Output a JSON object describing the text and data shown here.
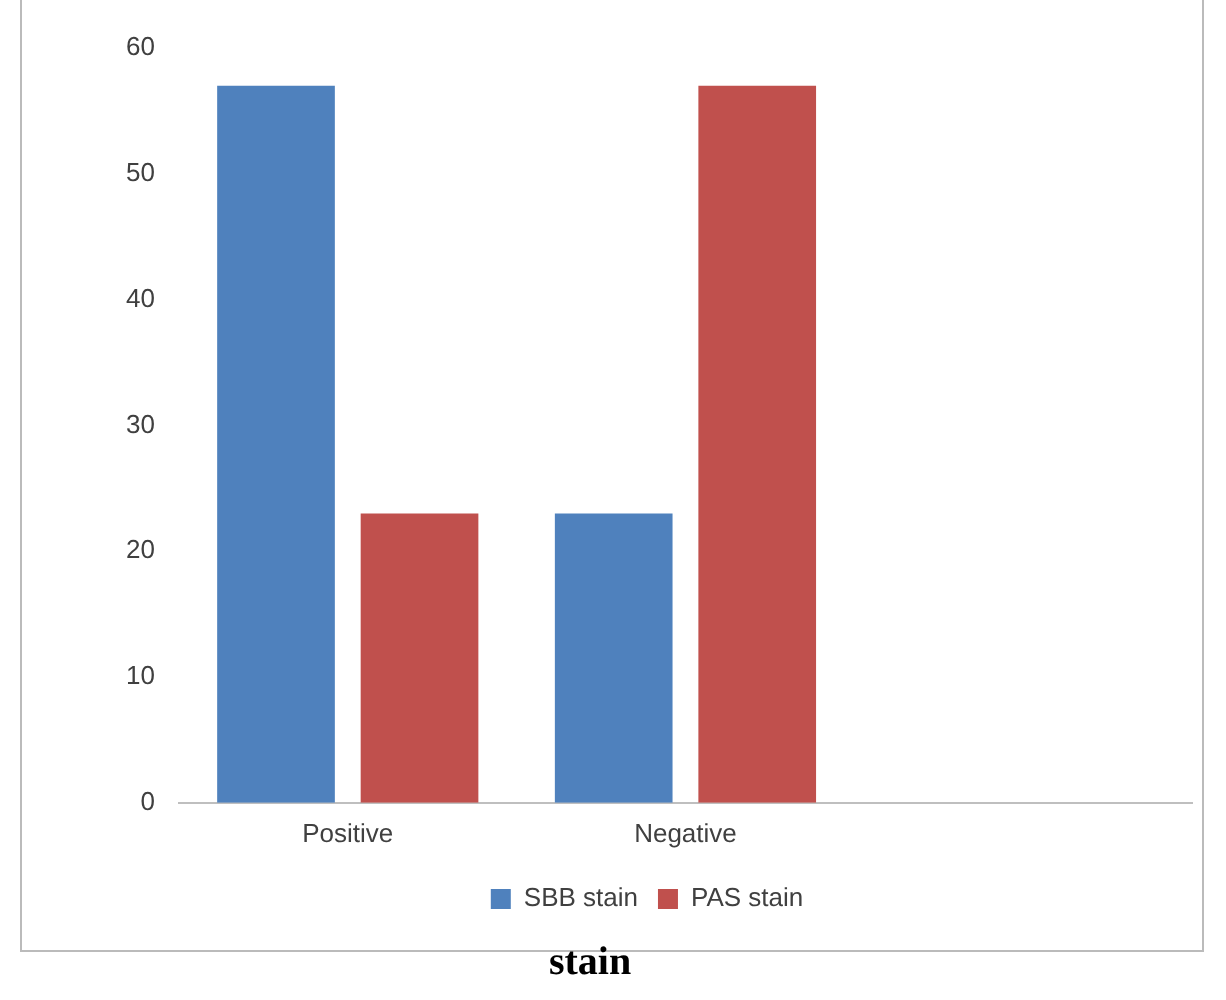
{
  "chart_data": {
    "type": "bar",
    "xlabel": "stain",
    "categories": [
      "Positive",
      "Negative",
      null
    ],
    "series": [
      {
        "name": "SBB stain",
        "color": "#4f81bd",
        "values": [
          57,
          23,
          null
        ]
      },
      {
        "name": "PAS stain",
        "color": "#c0504d",
        "values": [
          23,
          57,
          null
        ]
      }
    ],
    "ylim": [
      0,
      60
    ],
    "yticks": [
      0,
      10,
      20,
      30,
      40,
      50,
      60
    ],
    "grid": false,
    "legend": "bottom"
  }
}
